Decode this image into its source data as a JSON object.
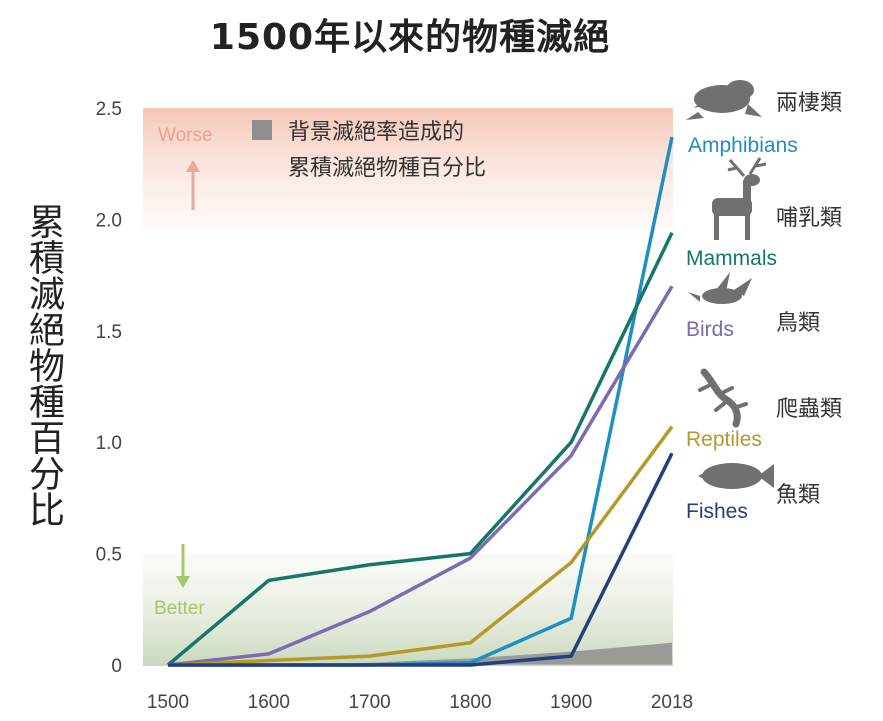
{
  "chart_data": {
    "type": "line",
    "title": "1500年以來的物種滅絕",
    "ylabel": "累積滅絕物種百分比",
    "xlabel": "",
    "x": [
      1500,
      1600,
      1700,
      1800,
      1900,
      2018
    ],
    "xticks": [
      "1500",
      "1600",
      "1700",
      "1800",
      "1900",
      "2018"
    ],
    "yticks": [
      "0",
      "0.5",
      "1.0",
      "1.5",
      "2.0",
      "2.5"
    ],
    "ylim": [
      0,
      2.5
    ],
    "grid": false,
    "series": [
      {
        "name": "Amphibians",
        "name_zh": "兩棲類",
        "color": "#1e8fc0",
        "icon": "frog-icon",
        "values": [
          0,
          0,
          0,
          0.01,
          0.21,
          2.37
        ]
      },
      {
        "name": "Mammals",
        "name_zh": "哺乳類",
        "color": "#16766a",
        "icon": "deer-icon",
        "values": [
          0,
          0.38,
          0.45,
          0.5,
          1.0,
          1.94
        ]
      },
      {
        "name": "Birds",
        "name_zh": "鳥類",
        "color": "#7b6bb2",
        "icon": "bird-icon",
        "values": [
          0,
          0.05,
          0.24,
          0.48,
          0.94,
          1.7
        ]
      },
      {
        "name": "Reptiles",
        "name_zh": "爬蟲類",
        "color": "#b39a2a",
        "icon": "lizard-icon",
        "values": [
          0,
          0.02,
          0.04,
          0.1,
          0.46,
          1.07
        ]
      },
      {
        "name": "Fishes",
        "name_zh": "魚類",
        "color": "#233f7e",
        "icon": "fish-icon",
        "values": [
          0,
          0,
          0,
          0,
          0.04,
          0.95
        ]
      }
    ],
    "background_rate": {
      "label_line1": "背景滅絕率造成的",
      "label_line2": "累積滅絕物種百分比",
      "color": "#8f8f8f",
      "values": [
        0,
        0,
        0.01,
        0.03,
        0.06,
        0.1
      ]
    },
    "annotations": {
      "worse": "Worse",
      "better": "Better"
    }
  }
}
